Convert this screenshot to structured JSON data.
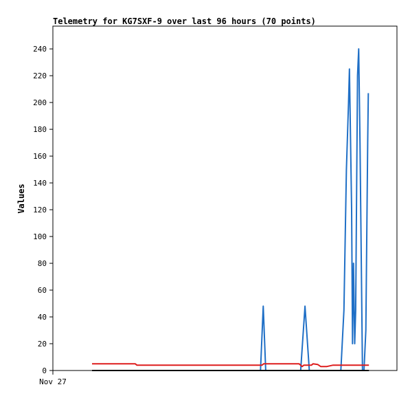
{
  "chart_data": {
    "type": "line",
    "title": "Telemetry for KG7SXF-9 over last 96 hours (70 points)",
    "xlabel": "",
    "ylabel": "Values",
    "x_ticks": [
      "Nov 27"
    ],
    "y_ticks": [
      0,
      20,
      40,
      60,
      80,
      100,
      120,
      140,
      160,
      180,
      200,
      220,
      240
    ],
    "ylim": [
      0,
      257
    ],
    "xlim": [
      0,
      96
    ],
    "grid": false,
    "legend": "none",
    "series": [
      {
        "color": "#1f6fc6",
        "points": [
          [
            0,
            0
          ],
          [
            54.5,
            0
          ],
          [
            55.4,
            48
          ],
          [
            56.2,
            0
          ],
          [
            67.5,
            0
          ],
          [
            68.9,
            48
          ],
          [
            70.3,
            0
          ],
          [
            80.5,
            0
          ],
          [
            81.5,
            45
          ],
          [
            82.3,
            150
          ],
          [
            83.0,
            200
          ],
          [
            83.3,
            225
          ],
          [
            84.0,
            120
          ],
          [
            84.3,
            20
          ],
          [
            84.6,
            80
          ],
          [
            85.0,
            20
          ],
          [
            85.3,
            45
          ],
          [
            85.9,
            220
          ],
          [
            86.3,
            240
          ],
          [
            86.7,
            170
          ],
          [
            87.5,
            0
          ],
          [
            88.0,
            0
          ],
          [
            88.6,
            30
          ],
          [
            89.2,
            170
          ],
          [
            89.4,
            207
          ]
        ]
      },
      {
        "color": "#dd1c1c",
        "points": [
          [
            0,
            5
          ],
          [
            14,
            5
          ],
          [
            14.5,
            4
          ],
          [
            55,
            4
          ],
          [
            55.5,
            5
          ],
          [
            67,
            5
          ],
          [
            67.5,
            4
          ],
          [
            68,
            3
          ],
          [
            68.5,
            4
          ],
          [
            71,
            4
          ],
          [
            71.5,
            5
          ],
          [
            73,
            4.5
          ],
          [
            74,
            3
          ],
          [
            76,
            3
          ],
          [
            77,
            3.5
          ],
          [
            78,
            4
          ],
          [
            89.6,
            4
          ]
        ]
      },
      {
        "color": "#000000",
        "points": [
          [
            0,
            0
          ],
          [
            89.6,
            0
          ]
        ]
      }
    ]
  }
}
